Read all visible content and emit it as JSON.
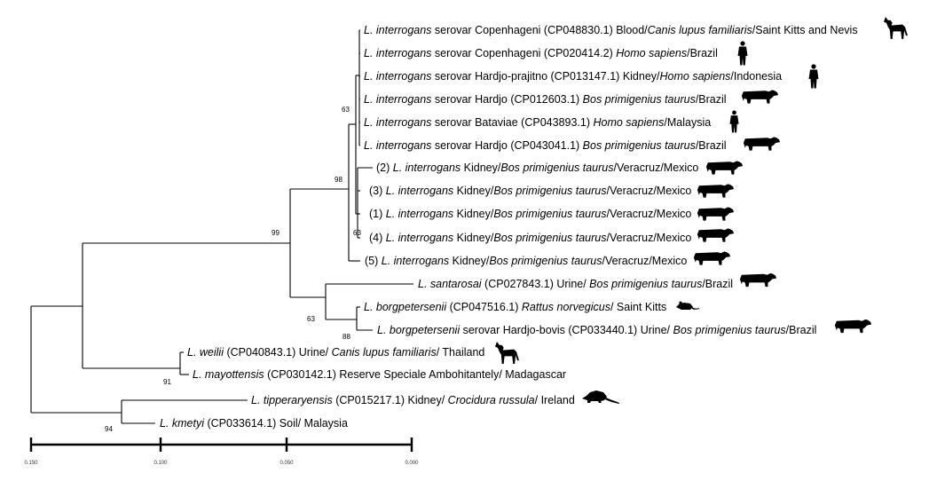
{
  "leaves": [
    {
      "prefix": "",
      "sp": "L. interrogans",
      "t1": " serovar Copenhageni (CP048830.1) Blood/",
      "host": "Canis lupus familiaris",
      "t2": "/Saint Kitts and Nevis",
      "icon": "dog-icon"
    },
    {
      "prefix": "",
      "sp": "L. interrogans",
      "t1": " serovar Copenhageni (CP020414.2) ",
      "host": "Homo sapiens",
      "t2": "/Brazil",
      "icon": "human-icon"
    },
    {
      "prefix": "",
      "sp": "L. interrogans",
      "t1": " serovar Hardjo-prajitno (CP013147.1) Kidney/",
      "host": "Homo sapiens",
      "t2": "/Indonesia",
      "icon": "human-icon"
    },
    {
      "prefix": "",
      "sp": "L.  interrogans",
      "t1": " serovar Hardjo (CP012603.1) ",
      "host": "Bos primigenius taurus",
      "t2": "/Brazil",
      "icon": "cow-icon"
    },
    {
      "prefix": "",
      "sp": "L. interrogans",
      "t1": " serovar Bataviae (CP043893.1) ",
      "host": "Homo sapiens",
      "t2": "/Malaysia",
      "icon": "human-icon"
    },
    {
      "prefix": "",
      "sp": "L. interrogans",
      "t1": " serovar Hardjo (CP043041.1) ",
      "host": "Bos primigenius taurus",
      "t2": "/Brazil",
      "icon": "cow-icon"
    },
    {
      "prefix": "(2) ",
      "sp": "L. interrogans",
      "t1": " Kidney/",
      "host": "Bos primigenius taurus",
      "t2": "/Veracruz/Mexico",
      "icon": "cow-icon"
    },
    {
      "prefix": "(3) ",
      "sp": "L. interrogans",
      "t1": " Kidney/",
      "host": "Bos primigenius taurus",
      "t2": "/Veracruz/Mexico",
      "icon": "cow-icon"
    },
    {
      "prefix": "(1) ",
      "sp": "L. interrogans",
      "t1": " Kidney/",
      "host": "Bos primigenius taurus",
      "t2": "/Veracruz/Mexico",
      "icon": "cow-icon"
    },
    {
      "prefix": "(4) ",
      "sp": "L. interrogans",
      "t1": " Kidney/",
      "host": "Bos primigenius taurus",
      "t2": "/Veracruz/Mexico",
      "icon": "cow-icon"
    },
    {
      "prefix": "(5) ",
      "sp": "L. interrogans",
      "t1": " Kidney/",
      "host": "Bos primigenius taurus",
      "t2": "/Veracruz/Mexico",
      "icon": "cow-icon"
    },
    {
      "prefix": "",
      "sp": "L. santarosai",
      "t1": " (CP027843.1) Urine/ ",
      "host": "Bos primigenius taurus",
      "t2": "/Brazil",
      "icon": "cow-icon"
    },
    {
      "prefix": "",
      "sp": "L. borgpetersenii",
      "t1": " (CP047516.1) ",
      "host": "Rattus norvegicus",
      "t2": "/ Saint Kitts",
      "icon": "rat-icon"
    },
    {
      "prefix": "",
      "sp": "L. borgpetersenii",
      "t1": " serovar Hardjo-bovis (CP033440.1) Urine/ ",
      "host": "Bos primigenius taurus",
      "t2": "/Brazil",
      "icon": "cow-icon"
    },
    {
      "prefix": "",
      "sp": "L. weilii",
      "t1": " (CP040843.1) Urine/ ",
      "host": "Canis lupus familiaris",
      "t2": "/ Thailand",
      "icon": "dog-icon"
    },
    {
      "prefix": "",
      "sp": "L. mayottensis",
      "t1": " (CP030142.1) Reserve Speciale Ambohitantely/ Madagascar",
      "host": "",
      "t2": "",
      "icon": ""
    },
    {
      "prefix": "",
      "sp": "L. tipperaryensis",
      "t1": " (CP015217.1) Kidney/ ",
      "host": "Crocidura russula",
      "t2": "/ Ireland",
      "icon": "shrew-icon"
    },
    {
      "prefix": "",
      "sp": "L. kmetyi",
      "t1": " (CP033614.1) Soil/ Malaysia",
      "host": "",
      "t2": "",
      "icon": ""
    }
  ],
  "bootstrap": [
    "63",
    "98",
    "99",
    "63",
    "63",
    "88",
    "91",
    "94"
  ],
  "scale_ticks": [
    "0.150",
    "0.100",
    "0.050",
    "0.000"
  ]
}
